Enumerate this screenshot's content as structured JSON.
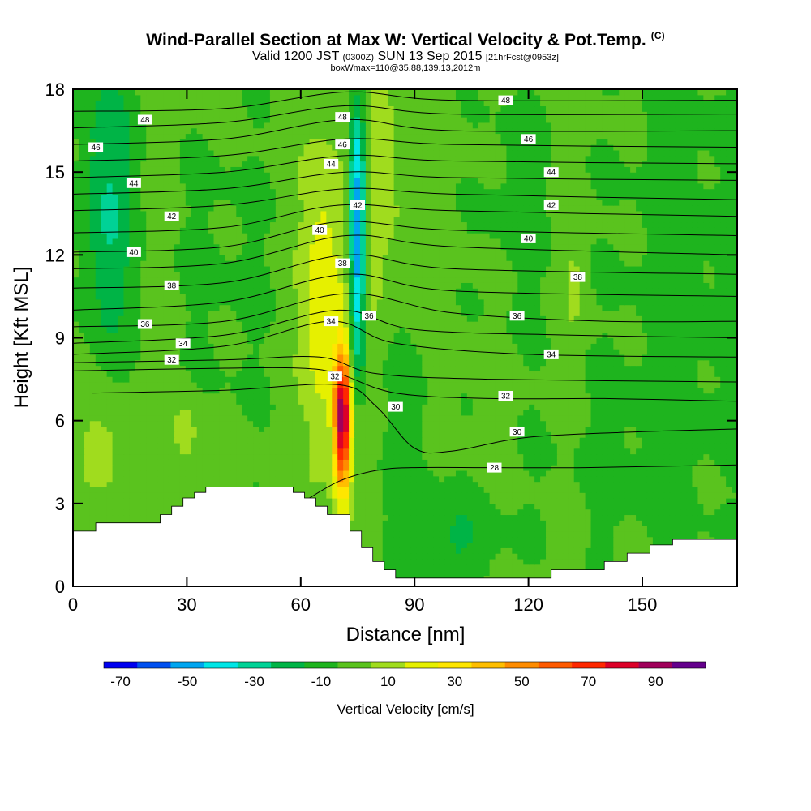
{
  "title": {
    "main": "Wind-Parallel Section at Max W: Vertical Velocity & Pot.Temp.",
    "copyright": "(C)",
    "valid": "Valid 1200 JST",
    "utc": "(0300Z)",
    "date": "SUN 13 Sep 2015",
    "forecast": "[21hrFcst@0953z]",
    "box": "boxWmax=110@35.88,139.13,2012m"
  },
  "chart_data": {
    "type": "heatmap",
    "xlabel": "Distance [nm]",
    "ylabel": "Height [Kft MSL]",
    "xlim": [
      0,
      175
    ],
    "ylim": [
      0,
      18
    ],
    "x_ticks": [
      "0",
      "30",
      "60",
      "90",
      "120",
      "150"
    ],
    "y_ticks": [
      "0",
      "3",
      "6",
      "9",
      "12",
      "15",
      "18"
    ],
    "colorbar": {
      "title": "Vertical Velocity [cm/s]",
      "levels": [
        -70,
        -60,
        -50,
        -40,
        -30,
        -20,
        -10,
        0,
        10,
        20,
        30,
        40,
        50,
        60,
        70,
        80,
        90,
        100
      ],
      "tick_labels": [
        "-70",
        "-50",
        "-30",
        "-10",
        "10",
        "30",
        "50",
        "70",
        "90"
      ],
      "colors": [
        "#0000f0",
        "#0050f0",
        "#00a5f0",
        "#00e6e6",
        "#00d296",
        "#00b446",
        "#1eb41e",
        "#5ac31e",
        "#a0dc1e",
        "#e6f000",
        "#ffe600",
        "#ffbe00",
        "#ff8c00",
        "#ff5a00",
        "#ff2800",
        "#dc0028",
        "#a0005a",
        "#64008c"
      ]
    },
    "terrain": [
      [
        0,
        2.0
      ],
      [
        6,
        2.0
      ],
      [
        6,
        2.3
      ],
      [
        23,
        2.3
      ],
      [
        23,
        2.6
      ],
      [
        26,
        2.6
      ],
      [
        26,
        2.9
      ],
      [
        29,
        2.9
      ],
      [
        29,
        3.2
      ],
      [
        32,
        3.2
      ],
      [
        32,
        3.4
      ],
      [
        35,
        3.4
      ],
      [
        35,
        3.6
      ],
      [
        58,
        3.6
      ],
      [
        58,
        3.4
      ],
      [
        61,
        3.4
      ],
      [
        61,
        3.2
      ],
      [
        64,
        3.2
      ],
      [
        64,
        2.9
      ],
      [
        67,
        2.9
      ],
      [
        67,
        2.6
      ],
      [
        73,
        2.6
      ],
      [
        73,
        2.0
      ],
      [
        76,
        2.0
      ],
      [
        76,
        1.4
      ],
      [
        79,
        1.4
      ],
      [
        79,
        0.9
      ],
      [
        82,
        0.9
      ],
      [
        82,
        0.6
      ],
      [
        85,
        0.6
      ],
      [
        85,
        0.3
      ],
      [
        126,
        0.3
      ],
      [
        126,
        0.6
      ],
      [
        140,
        0.6
      ],
      [
        140,
        0.9
      ],
      [
        146,
        0.9
      ],
      [
        146,
        1.2
      ],
      [
        152,
        1.2
      ],
      [
        152,
        1.5
      ],
      [
        158,
        1.5
      ],
      [
        158,
        1.7
      ],
      [
        175,
        1.7
      ]
    ],
    "updraft_peak_cm_s": 90,
    "downdraft_peak_cm_s": -50,
    "isentropes": [
      {
        "label": "28",
        "pts": [
          [
            60,
            3.0
          ],
          [
            70,
            3.8
          ],
          [
            80,
            4.2
          ],
          [
            90,
            4.3
          ],
          [
            110,
            4.3
          ],
          [
            135,
            4.3
          ],
          [
            175,
            4.4
          ]
        ]
      },
      {
        "label": "30",
        "pts": [
          [
            5,
            7.0
          ],
          [
            40,
            7.1
          ],
          [
            70,
            7.3
          ],
          [
            80,
            6.5
          ],
          [
            90,
            5.0
          ],
          [
            100,
            4.9
          ],
          [
            120,
            5.4
          ],
          [
            150,
            5.6
          ],
          [
            175,
            5.7
          ]
        ]
      },
      {
        "label": "32",
        "pts": [
          [
            0,
            7.8
          ],
          [
            40,
            7.9
          ],
          [
            60,
            7.9
          ],
          [
            70,
            7.7
          ],
          [
            85,
            7.0
          ],
          [
            110,
            6.8
          ],
          [
            140,
            6.8
          ],
          [
            175,
            6.7
          ]
        ]
      },
      {
        "label": "",
        "pts": [
          [
            0,
            8.1
          ],
          [
            40,
            8.2
          ],
          [
            65,
            8.3
          ],
          [
            80,
            7.7
          ],
          [
            110,
            7.5
          ],
          [
            175,
            7.4
          ]
        ]
      },
      {
        "label": "34",
        "pts": [
          [
            0,
            8.4
          ],
          [
            40,
            8.7
          ],
          [
            68,
            9.6
          ],
          [
            85,
            8.8
          ],
          [
            120,
            8.4
          ],
          [
            175,
            8.3
          ]
        ]
      },
      {
        "label": "",
        "pts": [
          [
            0,
            8.8
          ],
          [
            40,
            9.1
          ],
          [
            70,
            10.0
          ],
          [
            90,
            9.3
          ],
          [
            130,
            9.1
          ],
          [
            175,
            9.0
          ]
        ]
      },
      {
        "label": "36",
        "pts": [
          [
            0,
            9.4
          ],
          [
            40,
            9.6
          ],
          [
            72,
            10.6
          ],
          [
            100,
            9.9
          ],
          [
            140,
            9.6
          ],
          [
            175,
            9.6
          ]
        ]
      },
      {
        "label": "",
        "pts": [
          [
            0,
            10.0
          ],
          [
            40,
            10.3
          ],
          [
            72,
            11.3
          ],
          [
            100,
            10.7
          ],
          [
            175,
            10.5
          ]
        ]
      },
      {
        "label": "38",
        "pts": [
          [
            0,
            10.8
          ],
          [
            40,
            11.0
          ],
          [
            72,
            12.0
          ],
          [
            100,
            11.5
          ],
          [
            175,
            11.3
          ]
        ]
      },
      {
        "label": "",
        "pts": [
          [
            0,
            11.5
          ],
          [
            40,
            11.7
          ],
          [
            72,
            12.7
          ],
          [
            100,
            12.3
          ],
          [
            175,
            12.0
          ]
        ]
      },
      {
        "label": "40",
        "pts": [
          [
            0,
            12.1
          ],
          [
            40,
            12.3
          ],
          [
            70,
            13.2
          ],
          [
            100,
            12.9
          ],
          [
            175,
            12.7
          ]
        ]
      },
      {
        "label": "",
        "pts": [
          [
            0,
            12.8
          ],
          [
            40,
            13.0
          ],
          [
            70,
            13.8
          ],
          [
            100,
            13.6
          ],
          [
            175,
            13.4
          ]
        ]
      },
      {
        "label": "42",
        "pts": [
          [
            0,
            13.6
          ],
          [
            40,
            13.8
          ],
          [
            72,
            14.4
          ],
          [
            100,
            14.2
          ],
          [
            175,
            14.0
          ]
        ]
      },
      {
        "label": "",
        "pts": [
          [
            0,
            14.2
          ],
          [
            40,
            14.4
          ],
          [
            72,
            15.0
          ],
          [
            100,
            14.8
          ],
          [
            175,
            14.7
          ]
        ]
      },
      {
        "label": "44",
        "pts": [
          [
            0,
            14.8
          ],
          [
            40,
            15.0
          ],
          [
            72,
            15.6
          ],
          [
            100,
            15.4
          ],
          [
            175,
            15.3
          ]
        ]
      },
      {
        "label": "",
        "pts": [
          [
            0,
            15.4
          ],
          [
            40,
            15.6
          ],
          [
            72,
            16.2
          ],
          [
            100,
            16.0
          ],
          [
            175,
            15.9
          ]
        ]
      },
      {
        "label": "46",
        "pts": [
          [
            0,
            16.0
          ],
          [
            40,
            16.2
          ],
          [
            72,
            16.9
          ],
          [
            100,
            16.5
          ],
          [
            175,
            16.5
          ]
        ]
      },
      {
        "label": "",
        "pts": [
          [
            0,
            16.6
          ],
          [
            40,
            16.8
          ],
          [
            72,
            17.4
          ],
          [
            100,
            17.1
          ],
          [
            175,
            17.1
          ]
        ]
      },
      {
        "label": "48",
        "pts": [
          [
            0,
            17.2
          ],
          [
            40,
            17.3
          ],
          [
            72,
            17.9
          ],
          [
            100,
            17.6
          ],
          [
            175,
            17.6
          ]
        ]
      }
    ],
    "isentrope_labels": [
      {
        "text": "48",
        "x": 19,
        "y": 16.9
      },
      {
        "text": "46",
        "x": 6,
        "y": 15.9
      },
      {
        "text": "44",
        "x": 16,
        "y": 14.6
      },
      {
        "text": "42",
        "x": 26,
        "y": 13.4
      },
      {
        "text": "40",
        "x": 16,
        "y": 12.1
      },
      {
        "text": "38",
        "x": 26,
        "y": 10.9
      },
      {
        "text": "36",
        "x": 19,
        "y": 9.5
      },
      {
        "text": "34",
        "x": 29,
        "y": 8.8
      },
      {
        "text": "32",
        "x": 26,
        "y": 8.2
      },
      {
        "text": "40",
        "x": 65,
        "y": 12.9
      },
      {
        "text": "44",
        "x": 68,
        "y": 15.3
      },
      {
        "text": "48",
        "x": 71,
        "y": 17.0
      },
      {
        "text": "46",
        "x": 71,
        "y": 16.0
      },
      {
        "text": "42",
        "x": 75,
        "y": 13.8
      },
      {
        "text": "38",
        "x": 71,
        "y": 11.7
      },
      {
        "text": "36",
        "x": 78,
        "y": 9.8
      },
      {
        "text": "34",
        "x": 68,
        "y": 9.6
      },
      {
        "text": "32",
        "x": 69,
        "y": 7.6
      },
      {
        "text": "30",
        "x": 85,
        "y": 6.5
      },
      {
        "text": "48",
        "x": 114,
        "y": 17.6
      },
      {
        "text": "46",
        "x": 120,
        "y": 16.2
      },
      {
        "text": "44",
        "x": 126,
        "y": 15.0
      },
      {
        "text": "42",
        "x": 126,
        "y": 13.8
      },
      {
        "text": "40",
        "x": 120,
        "y": 12.6
      },
      {
        "text": "38",
        "x": 133,
        "y": 11.2
      },
      {
        "text": "36",
        "x": 117,
        "y": 9.8
      },
      {
        "text": "34",
        "x": 126,
        "y": 8.4
      },
      {
        "text": "32",
        "x": 114,
        "y": 6.9
      },
      {
        "text": "30",
        "x": 117,
        "y": 5.6
      },
      {
        "text": "28",
        "x": 111,
        "y": 4.3
      }
    ]
  }
}
